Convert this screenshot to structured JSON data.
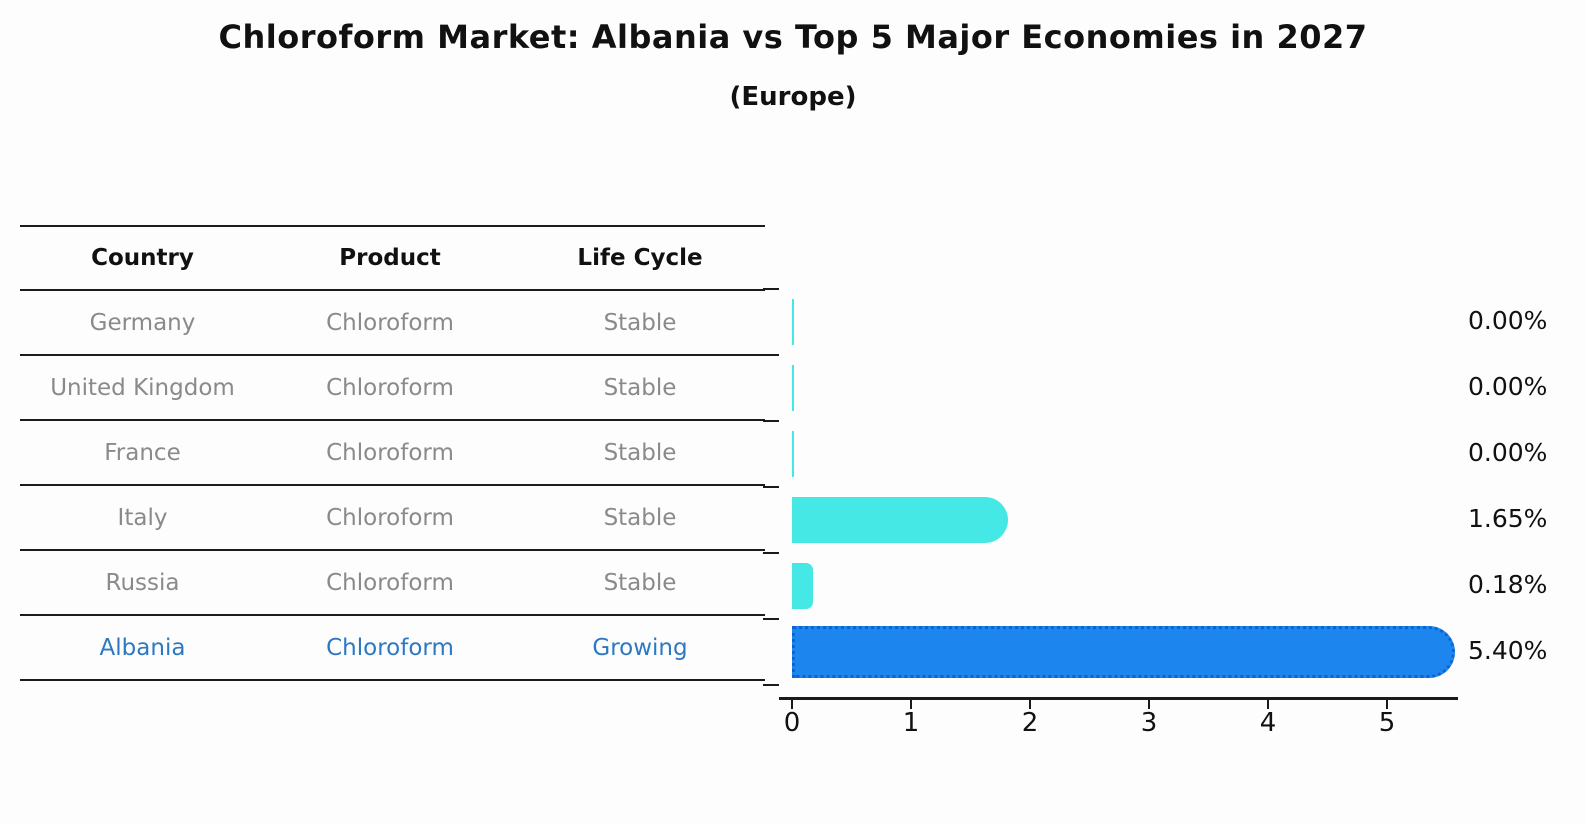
{
  "chart": {
    "title": "Chloroform Market: Albania vs Top 5 Major Economies in 2027",
    "subtitle": "(Europe)"
  },
  "table": {
    "columns": [
      "Country",
      "Product",
      "Life Cycle"
    ],
    "rows": [
      {
        "country": "Germany",
        "product": "Chloroform",
        "life_cycle": "Stable",
        "highlight": false
      },
      {
        "country": "United Kingdom",
        "product": "Chloroform",
        "life_cycle": "Stable",
        "highlight": false
      },
      {
        "country": "France",
        "product": "Chloroform",
        "life_cycle": "Stable",
        "highlight": false
      },
      {
        "country": "Italy",
        "product": "Chloroform",
        "life_cycle": "Stable",
        "highlight": false
      },
      {
        "country": "Russia",
        "product": "Chloroform",
        "life_cycle": "Stable",
        "highlight": false
      },
      {
        "country": "Albania",
        "product": "Chloroform",
        "life_cycle": "Growing",
        "highlight": true
      }
    ]
  },
  "chart_data": {
    "type": "bar",
    "orientation": "horizontal",
    "title": "Chloroform Market: Albania vs Top 5 Major Economies in 2027",
    "subtitle": "(Europe)",
    "categories": [
      "Germany",
      "United Kingdom",
      "France",
      "Italy",
      "Russia",
      "Albania"
    ],
    "values": [
      0.0,
      0.0,
      0.0,
      1.65,
      0.18,
      5.4
    ],
    "value_labels": [
      "0.00%",
      "0.00%",
      "0.00%",
      "1.65%",
      "0.18%",
      "5.40%"
    ],
    "units": "percent",
    "x_ticks": [
      "0",
      "1",
      "2",
      "3",
      "4",
      "5"
    ],
    "xlim": [
      0,
      5.6
    ],
    "grid": false,
    "legend": "none",
    "highlight_index": 5,
    "colors": {
      "bar_default": "#46E8E6",
      "bar_highlight": "#1d85ee",
      "bar_highlight_border": "#0f62d4",
      "highlight_text": "#2d78c3",
      "muted_text": "#8a8a8a",
      "axis_text": "#111111"
    }
  }
}
